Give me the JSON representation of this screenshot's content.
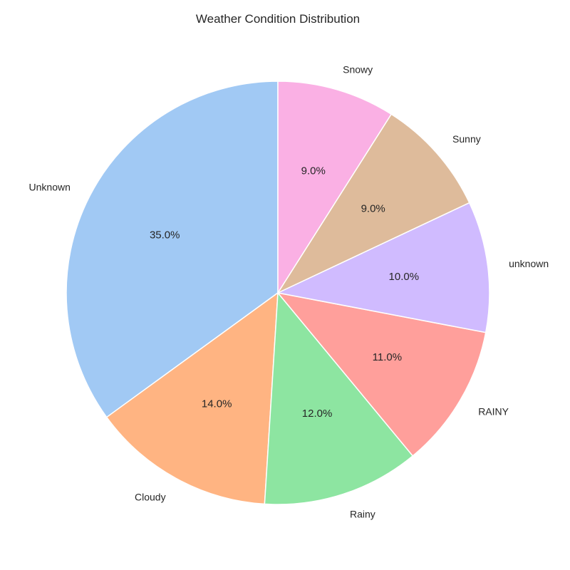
{
  "chart_data": {
    "type": "pie",
    "title": "Weather Condition Distribution",
    "start_angle_deg": 90,
    "direction": "counterclockwise",
    "slices": [
      {
        "label": "Unknown",
        "value": 35.0,
        "pct_label": "35.0%",
        "color": "#a1c9f4"
      },
      {
        "label": "Cloudy",
        "value": 14.0,
        "pct_label": "14.0%",
        "color": "#ffb482"
      },
      {
        "label": "Rainy",
        "value": 12.0,
        "pct_label": "12.0%",
        "color": "#8de5a1"
      },
      {
        "label": "RAINY",
        "value": 11.0,
        "pct_label": "11.0%",
        "color": "#ff9f9b"
      },
      {
        "label": "unknown",
        "value": 10.0,
        "pct_label": "10.0%",
        "color": "#d0bbff"
      },
      {
        "label": "Sunny",
        "value": 9.0,
        "pct_label": "9.0%",
        "color": "#debb9b"
      },
      {
        "label": "Snowy",
        "value": 9.0,
        "pct_label": "9.0%",
        "color": "#fab0e4"
      }
    ],
    "edge_color": "#ffffff"
  }
}
